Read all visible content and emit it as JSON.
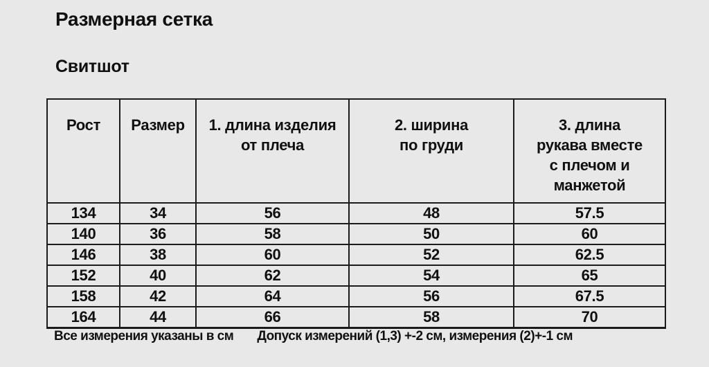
{
  "page": {
    "title": "Размерная сетка",
    "subtitle": "Свитшот",
    "note_units": "Все измерения указаны в см",
    "note_tolerance": "Допуск измерений (1,3) +-2 см, измерения (2)+-1 см"
  },
  "chart_data": {
    "type": "table",
    "title": "Размерная сетка — Свитшот",
    "columns": [
      "Рост",
      "Размер",
      "1. длина изделия\nот плеча",
      "2. ширина\nпо груди",
      "3. длина\nрукава вместе\nс плечом и\nманжетой"
    ],
    "column_keys": [
      "height",
      "size",
      "length-from-shoulder",
      "chest-width",
      "sleeve-length"
    ],
    "rows": [
      [
        "134",
        "34",
        "56",
        "48",
        "57.5"
      ],
      [
        "140",
        "36",
        "58",
        "50",
        "60"
      ],
      [
        "146",
        "38",
        "60",
        "52",
        "62.5"
      ],
      [
        "152",
        "40",
        "62",
        "54",
        "65"
      ],
      [
        "158",
        "42",
        "64",
        "56",
        "67.5"
      ],
      [
        "164",
        "44",
        "66",
        "58",
        "70"
      ]
    ],
    "units": "см"
  },
  "colors": {
    "background": "#e8e8e8",
    "border": "#1b1b1b",
    "text": "#101010"
  }
}
